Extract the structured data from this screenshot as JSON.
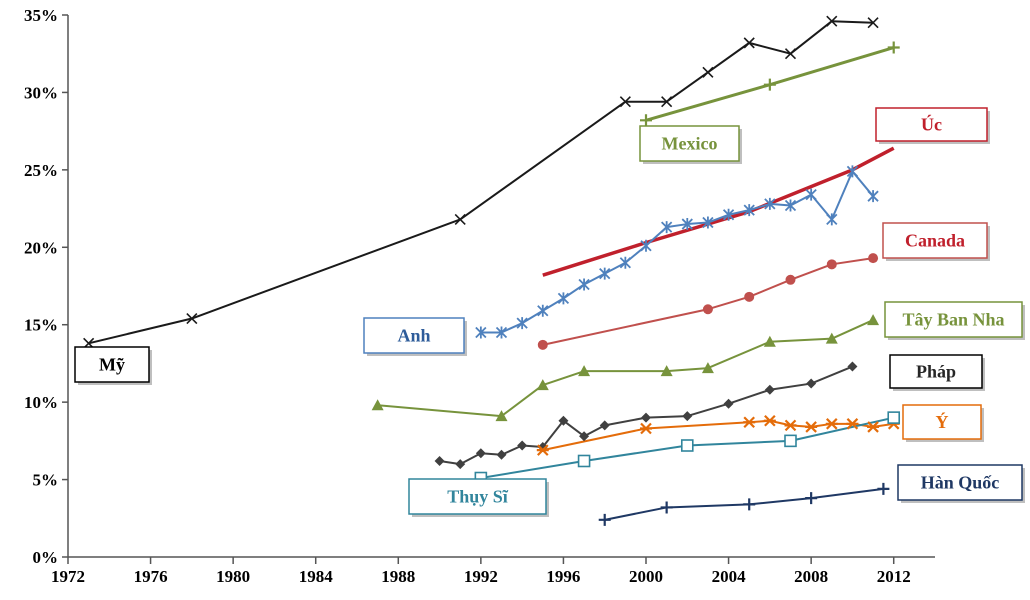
{
  "chart_data": {
    "type": "line",
    "title": "",
    "xlabel": "",
    "ylabel": "",
    "xlim": [
      1972,
      2014
    ],
    "ylim": [
      0,
      35
    ],
    "x_ticks": [
      1972,
      1976,
      1980,
      1984,
      1988,
      1992,
      1996,
      2000,
      2004,
      2008,
      2012
    ],
    "y_ticks": [
      0,
      5,
      10,
      15,
      20,
      25,
      30,
      35
    ],
    "y_tick_labels": [
      "0%",
      "5%",
      "10%",
      "15%",
      "20%",
      "25%",
      "30%",
      "35%"
    ],
    "grid": false,
    "legend": "labels boxed next to each series",
    "series": [
      {
        "name": "Mỹ",
        "color": "#1a1a1a",
        "marker": "x",
        "x": [
          1973,
          1978,
          1991,
          1999,
          2001,
          2003,
          2005,
          2007,
          2009,
          2011
        ],
        "y": [
          13.8,
          15.4,
          21.8,
          29.4,
          29.4,
          31.3,
          33.2,
          32.5,
          34.6,
          34.5
        ]
      },
      {
        "name": "Mexico",
        "color": "#77933c",
        "marker": "plus",
        "x": [
          2000,
          2006,
          2012
        ],
        "y": [
          28.2,
          30.5,
          32.9
        ]
      },
      {
        "name": "Úc",
        "color": "#c0202c",
        "marker": "none",
        "x": [
          1995,
          2000,
          2005,
          2010,
          2012
        ],
        "y": [
          18.2,
          20.3,
          22.3,
          25.0,
          26.4
        ]
      },
      {
        "name": "Anh",
        "color": "#4f81bd",
        "marker": "star",
        "x": [
          1992,
          1993,
          1994,
          1995,
          1996,
          1997,
          1998,
          1999,
          2000,
          2001,
          2002,
          2003,
          2004,
          2005,
          2006,
          2007,
          2008,
          2009,
          2010,
          2011
        ],
        "y": [
          14.5,
          14.5,
          15.1,
          15.9,
          16.7,
          17.6,
          18.3,
          19.0,
          20.1,
          21.3,
          21.5,
          21.6,
          22.1,
          22.4,
          22.8,
          22.7,
          23.4,
          21.8,
          24.9,
          23.3
        ]
      },
      {
        "name": "Canada",
        "color": "#c0504d",
        "marker": "circle",
        "x": [
          1995,
          2003,
          2005,
          2007,
          2009,
          2011
        ],
        "y": [
          13.7,
          16.0,
          16.8,
          17.9,
          18.9,
          19.3
        ]
      },
      {
        "name": "Tây Ban Nha",
        "color": "#77933c",
        "marker": "triangle",
        "x": [
          1987,
          1993,
          1995,
          1997,
          2001,
          2003,
          2006,
          2009,
          2011
        ],
        "y": [
          9.8,
          9.1,
          11.1,
          12.0,
          12.0,
          12.2,
          13.9,
          14.1,
          15.3
        ]
      },
      {
        "name": "Pháp",
        "color": "#404040",
        "marker": "diamond",
        "x": [
          1990,
          1991,
          1992,
          1993,
          1994,
          1995,
          1996,
          1997,
          1998,
          2000,
          2002,
          2004,
          2006,
          2008,
          2010
        ],
        "y": [
          6.2,
          6.0,
          6.7,
          6.6,
          7.2,
          7.1,
          8.8,
          7.8,
          8.5,
          9.0,
          9.1,
          9.9,
          10.8,
          11.2,
          12.3
        ]
      },
      {
        "name": "Ý",
        "color": "#e46c0a",
        "marker": "asterisk",
        "x": [
          1995,
          2000,
          2005,
          2006,
          2007,
          2008,
          2009,
          2010,
          2011,
          2012
        ],
        "y": [
          6.9,
          8.3,
          8.7,
          8.8,
          8.5,
          8.4,
          8.6,
          8.6,
          8.4,
          8.6
        ]
      },
      {
        "name": "Thụy  Sĩ",
        "color": "#31859c",
        "marker": "square",
        "x": [
          1992,
          1997,
          2002,
          2007,
          2012
        ],
        "y": [
          5.1,
          6.2,
          7.2,
          7.5,
          9.0
        ]
      },
      {
        "name": "Hàn Quốc",
        "color": "#1f3864",
        "marker": "plus",
        "x": [
          1998,
          2001,
          2005,
          2008,
          2011.5
        ],
        "y": [
          2.4,
          3.2,
          3.4,
          3.8,
          4.4
        ]
      }
    ]
  }
}
